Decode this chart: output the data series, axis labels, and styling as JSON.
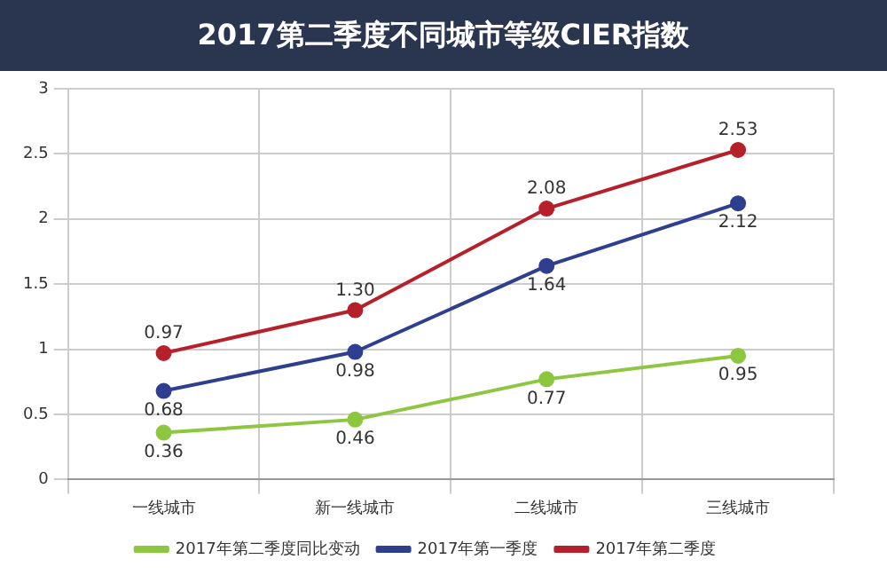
{
  "chart_data": {
    "type": "line",
    "title": "2017第二季度不同城市等级CIER指数",
    "categories": [
      "一线城市",
      "新一线城市",
      "二线城市",
      "三线城市"
    ],
    "series": [
      {
        "name": "2017年第二季度同比变动",
        "color": "#8dc63f",
        "values": [
          0.36,
          0.46,
          0.77,
          0.95
        ],
        "value_labels": [
          "0.36",
          "0.46",
          "0.77",
          "0.95"
        ]
      },
      {
        "name": "2017年第一季度",
        "color": "#2e3f8f",
        "values": [
          0.68,
          0.98,
          1.64,
          2.12
        ],
        "value_labels": [
          "0.68",
          "0.98",
          "1.64",
          "2.12"
        ]
      },
      {
        "name": "2017年第二季度",
        "color": "#b5202a",
        "values": [
          0.97,
          1.3,
          2.08,
          2.53
        ],
        "value_labels": [
          "0.97",
          "1.30",
          "2.08",
          "2.53"
        ]
      }
    ],
    "ylim": [
      0,
      3
    ],
    "yticks": [
      0,
      0.5,
      1,
      1.5,
      2,
      2.5,
      3
    ],
    "grid": true,
    "legend": "bottom",
    "marker": "circle",
    "line_style": "solid"
  }
}
